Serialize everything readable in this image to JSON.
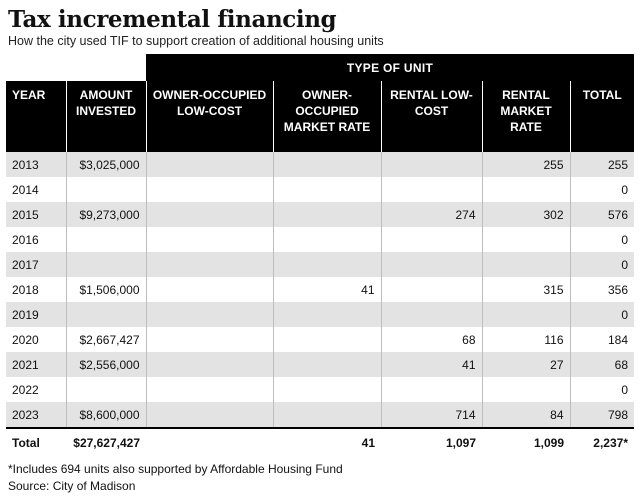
{
  "title": "Tax incremental financing",
  "subtitle": "How the city used TIF to support creation of additional housing units",
  "group_header": "TYPE OF UNIT",
  "headers": {
    "year": "YEAR",
    "amount": "AMOUNT INVESTED",
    "owner_low": "OWNER-OCCUPIED LOW-COST",
    "owner_market": "OWNER-OCCUPIED MARKET RATE",
    "rental_low": "RENTAL LOW-COST",
    "rental_market": "RENTAL MARKET RATE",
    "total": "TOTAL"
  },
  "rows": [
    {
      "year": "2013",
      "amount": "$3,025,000",
      "owner_low": "",
      "owner_market": "",
      "rental_low": "",
      "rental_market": "255",
      "total": "255"
    },
    {
      "year": "2014",
      "amount": "",
      "owner_low": "",
      "owner_market": "",
      "rental_low": "",
      "rental_market": "",
      "total": "0"
    },
    {
      "year": "2015",
      "amount": "$9,273,000",
      "owner_low": "",
      "owner_market": "",
      "rental_low": "274",
      "rental_market": "302",
      "total": "576"
    },
    {
      "year": "2016",
      "amount": "",
      "owner_low": "",
      "owner_market": "",
      "rental_low": "",
      "rental_market": "",
      "total": "0"
    },
    {
      "year": "2017",
      "amount": "",
      "owner_low": "",
      "owner_market": "",
      "rental_low": "",
      "rental_market": "",
      "total": "0"
    },
    {
      "year": "2018",
      "amount": "$1,506,000",
      "owner_low": "",
      "owner_market": "41",
      "rental_low": "",
      "rental_market": "315",
      "total": "356"
    },
    {
      "year": "2019",
      "amount": "",
      "owner_low": "",
      "owner_market": "",
      "rental_low": "",
      "rental_market": "",
      "total": "0"
    },
    {
      "year": "2020",
      "amount": "$2,667,427",
      "owner_low": "",
      "owner_market": "",
      "rental_low": "68",
      "rental_market": "116",
      "total": "184"
    },
    {
      "year": "2021",
      "amount": "$2,556,000",
      "owner_low": "",
      "owner_market": "",
      "rental_low": "41",
      "rental_market": "27",
      "total": "68"
    },
    {
      "year": "2022",
      "amount": "",
      "owner_low": "",
      "owner_market": "",
      "rental_low": "",
      "rental_market": "",
      "total": "0"
    },
    {
      "year": "2023",
      "amount": "$8,600,000",
      "owner_low": "",
      "owner_market": "",
      "rental_low": "714",
      "rental_market": "84",
      "total": "798"
    }
  ],
  "totals": {
    "label": "Total",
    "amount": "$27,627,427",
    "owner_low": "",
    "owner_market": "41",
    "rental_low": "1,097",
    "rental_market": "1,099",
    "total": "2,237*"
  },
  "footnote": "*Includes 694 units also supported by Affordable Housing Fund",
  "source": "Source: City of Madison"
}
